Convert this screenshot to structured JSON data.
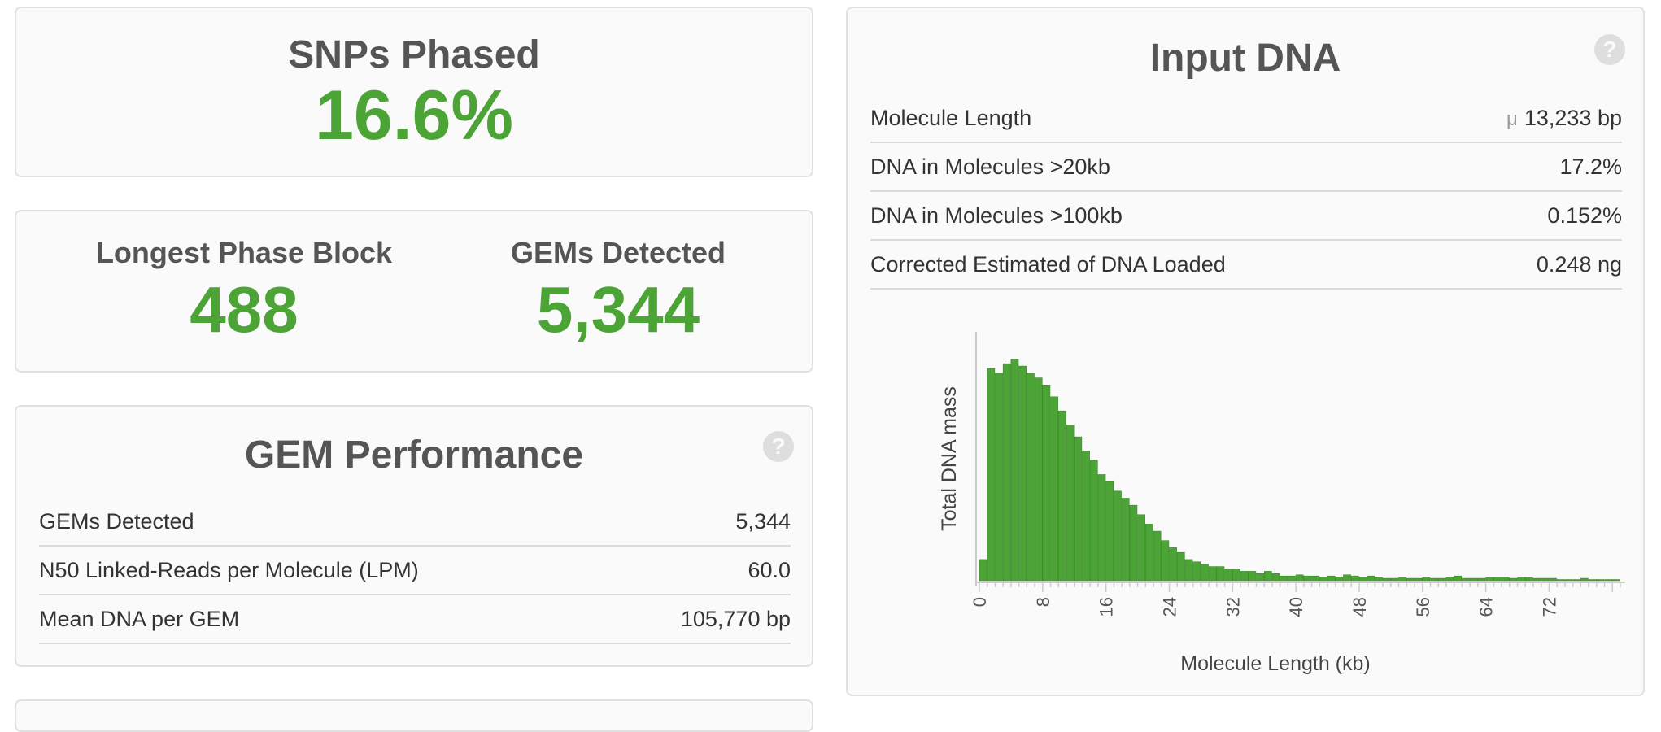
{
  "snps_phased": {
    "title": "SNPs Phased",
    "value": "16.6%"
  },
  "phase_summary": {
    "longest_phase_block": {
      "title": "Longest Phase Block",
      "value": "488"
    },
    "gems_detected": {
      "title": "GEMs Detected",
      "value": "5,344"
    }
  },
  "gem_performance": {
    "title": "GEM Performance",
    "help_label": "?",
    "rows": [
      {
        "label": "GEMs Detected",
        "value": "5,344"
      },
      {
        "label": "N50 Linked-Reads per Molecule (LPM)",
        "value": "60.0"
      },
      {
        "label": "Mean DNA per GEM",
        "value": "105,770 bp"
      }
    ]
  },
  "input_dna": {
    "title": "Input DNA",
    "help_label": "?",
    "rows": [
      {
        "label": "Molecule Length",
        "prefix": "μ",
        "value": "13,233 bp"
      },
      {
        "label": "DNA in Molecules >20kb",
        "prefix": "",
        "value": "17.2%"
      },
      {
        "label": "DNA in Molecules >100kb",
        "prefix": "",
        "value": "0.152%"
      },
      {
        "label": "Corrected Estimated of DNA Loaded",
        "prefix": "",
        "value": "0.248 ng"
      }
    ]
  },
  "chart_data": {
    "type": "bar",
    "title": "",
    "xlabel": "Molecule Length (kb)",
    "ylabel": "Total DNA mass",
    "xlim": [
      0,
      81
    ],
    "ylim": [
      0,
      1.0
    ],
    "bin_width_kb": 1,
    "x_ticks": [
      0,
      8,
      16,
      24,
      32,
      40,
      48,
      56,
      64,
      72
    ],
    "bar_color": "#4ca336",
    "values": [
      0.09,
      0.9,
      0.88,
      0.92,
      0.94,
      0.91,
      0.88,
      0.86,
      0.83,
      0.78,
      0.72,
      0.66,
      0.61,
      0.55,
      0.51,
      0.45,
      0.42,
      0.38,
      0.35,
      0.32,
      0.28,
      0.24,
      0.21,
      0.17,
      0.14,
      0.12,
      0.09,
      0.08,
      0.07,
      0.06,
      0.06,
      0.05,
      0.05,
      0.04,
      0.04,
      0.03,
      0.04,
      0.03,
      0.02,
      0.02,
      0.025,
      0.02,
      0.02,
      0.015,
      0.02,
      0.015,
      0.025,
      0.02,
      0.015,
      0.02,
      0.015,
      0.01,
      0.01,
      0.015,
      0.01,
      0.01,
      0.015,
      0.01,
      0.01,
      0.015,
      0.02,
      0.01,
      0.01,
      0.01,
      0.015,
      0.015,
      0.015,
      0.01,
      0.015,
      0.015,
      0.01,
      0.01,
      0.01,
      0.005,
      0.005,
      0.005,
      0.01,
      0.005,
      0.005,
      0.005,
      0.005
    ]
  }
}
